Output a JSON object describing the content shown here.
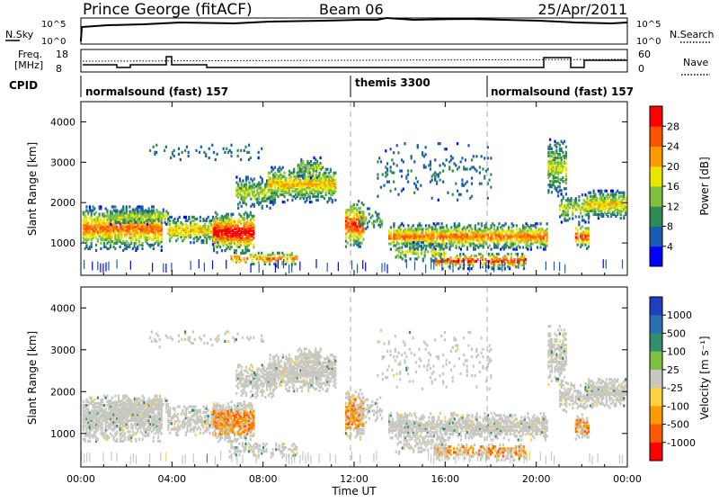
{
  "header": {
    "station": "Prince George (fitACF)",
    "beam": "Beam 06",
    "date": "25/Apr/2011"
  },
  "strips": {
    "nsky_label": "N.Sky",
    "nsky_ticks": [
      "10^5",
      "10^0"
    ],
    "nsearch_label": "N.Search",
    "nsearch_ticks": [
      "10^5",
      "10^0"
    ],
    "freq_label": "Freq.",
    "freq_unit": "[MHz]",
    "freq_ticks": [
      "18",
      "8"
    ],
    "nave_label": "Nave",
    "nave_ticks": [
      "60",
      "0"
    ],
    "cpid_label": "CPID",
    "cpid_segments": [
      {
        "label": "normalsound (fast) 157",
        "start": 0
      },
      {
        "label": "themis 3300",
        "start": 12
      },
      {
        "label": "normalsound (fast) 157",
        "start": 18
      }
    ]
  },
  "chart_data": [
    {
      "type": "heatmap",
      "title": "",
      "ylabel": "Slant Range [km]",
      "yticks": [
        "1000",
        "2000",
        "3000",
        "4000"
      ],
      "ylim": [
        200,
        4500
      ],
      "xlim": [
        0,
        24
      ],
      "colorbar": {
        "label": "Power [dB]",
        "ticks": [
          "4",
          "8",
          "12",
          "16",
          "20",
          "24",
          "28"
        ],
        "colors": [
          "#0000ff",
          "#1a5bb5",
          "#2e8b57",
          "#7fbf3f",
          "#e6e600",
          "#ff9900",
          "#ff5000",
          "#ff0000"
        ]
      }
    },
    {
      "type": "heatmap",
      "title": "",
      "ylabel": "Slant Range [km]",
      "yticks": [
        "1000",
        "2000",
        "3000",
        "4000"
      ],
      "ylim": [
        200,
        4500
      ],
      "xlim": [
        0,
        24
      ],
      "xlabel": "Time UT",
      "xticks": [
        "00:00",
        "04:00",
        "08:00",
        "12:00",
        "16:00",
        "20:00",
        "00:00"
      ],
      "colorbar": {
        "label": "Velocity [m s⁻¹]",
        "ticks": [
          "1000",
          "500",
          "100",
          "25",
          "-25",
          "-100",
          "-500",
          "-1000"
        ],
        "colors": [
          "#1f3fbf",
          "#2a6fb0",
          "#2f8f6f",
          "#7fbf3f",
          "#c8c8c0",
          "#ffd23f",
          "#ff9a00",
          "#ff5a00",
          "#ff0000"
        ]
      }
    }
  ]
}
